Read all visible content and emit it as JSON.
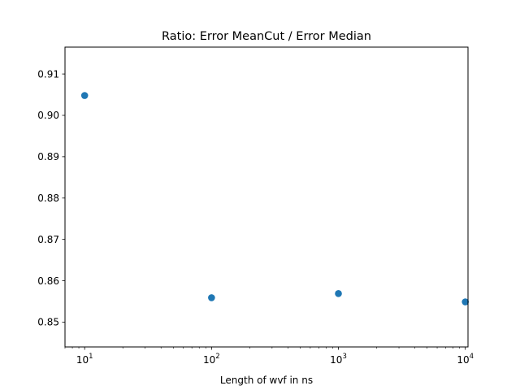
{
  "chart_data": {
    "type": "scatter",
    "title": "Ratio: Error MeanCut / Error Median",
    "xlabel": "Length of wvf in ns",
    "ylabel": "",
    "x_scale": "log",
    "xlim": [
      7,
      10500
    ],
    "ylim": [
      0.844,
      0.9165
    ],
    "x_ticks": [
      {
        "value": 10,
        "base": "10",
        "exp": "1"
      },
      {
        "value": 100,
        "base": "10",
        "exp": "2"
      },
      {
        "value": 1000,
        "base": "10",
        "exp": "3"
      },
      {
        "value": 10000,
        "base": "10",
        "exp": "4"
      }
    ],
    "y_ticks": [
      "0.85",
      "0.86",
      "0.87",
      "0.88",
      "0.89",
      "0.90",
      "0.91"
    ],
    "grid": false,
    "point_color": "#1f77b4",
    "points": [
      {
        "x": 10,
        "y": 0.9048
      },
      {
        "x": 100,
        "y": 0.8559
      },
      {
        "x": 1000,
        "y": 0.8569
      },
      {
        "x": 10000,
        "y": 0.8549
      }
    ]
  }
}
